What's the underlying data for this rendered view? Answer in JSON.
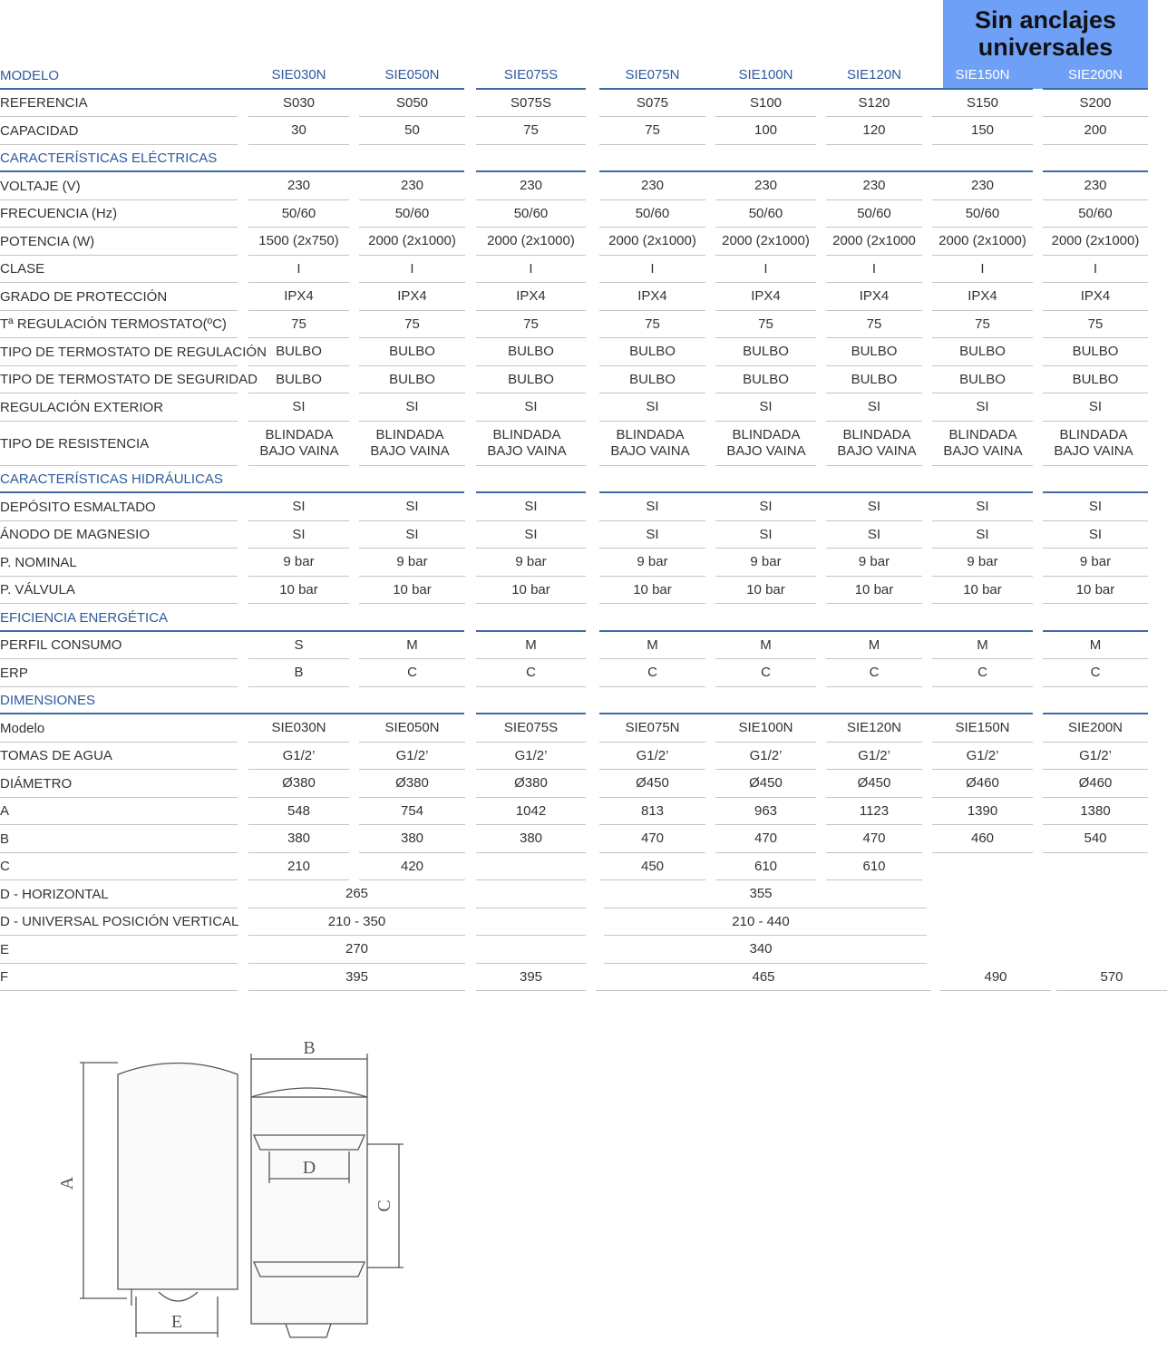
{
  "badge": "Sin anclajes universales",
  "table": {
    "header": {
      "label": "MODELO",
      "cells": [
        "SIE030N",
        "SIE050N",
        "SIE075S",
        "SIE075N",
        "SIE100N",
        "SIE120N",
        "SIE150N",
        "SIE200N"
      ]
    },
    "rows": [
      {
        "label": "REFERENCIA",
        "cells": [
          "S030",
          "S050",
          "S075S",
          "S075",
          "S100",
          "S120",
          "S150",
          "S200"
        ]
      },
      {
        "label": "CAPACIDAD",
        "cells": [
          "30",
          "50",
          "75",
          "75",
          "100",
          "120",
          "150",
          "200"
        ]
      },
      {
        "section": "CARACTERÍSTICAS ELÉCTRICAS"
      },
      {
        "label": "VOLTAJE (V)",
        "cells": [
          "230",
          "230",
          "230",
          "230",
          "230",
          "230",
          "230",
          "230"
        ]
      },
      {
        "label": "FRECUENCIA (Hz)",
        "cells": [
          "50/60",
          "50/60",
          "50/60",
          "50/60",
          "50/60",
          "50/60",
          "50/60",
          "50/60"
        ]
      },
      {
        "label": "POTENCIA (W)",
        "cells": [
          "1500 (2x750)",
          "2000 (2x1000)",
          "2000 (2x1000)",
          "2000 (2x1000)",
          "2000 (2x1000)",
          "2000 (2x1000",
          "2000 (2x1000)",
          "2000 (2x1000)"
        ]
      },
      {
        "label": "CLASE",
        "cells": [
          "I",
          "I",
          "I",
          "I",
          "I",
          "I",
          "I",
          "I"
        ]
      },
      {
        "label": "GRADO DE PROTECCIÓN",
        "cells": [
          "IPX4",
          "IPX4",
          "IPX4",
          "IPX4",
          "IPX4",
          "IPX4",
          "IPX4",
          "IPX4"
        ]
      },
      {
        "label": "Tª REGULACIÓN TERMOSTATO(ºC)",
        "cells": [
          "75",
          "75",
          "75",
          "75",
          "75",
          "75",
          "75",
          "75"
        ]
      },
      {
        "label": "TIPO DE TERMOSTATO DE REGULACIÓN",
        "cells": [
          "BULBO",
          "BULBO",
          "BULBO",
          "BULBO",
          "BULBO",
          "BULBO",
          "BULBO",
          "BULBO"
        ]
      },
      {
        "label": "TIPO DE TERMOSTATO DE SEGURIDAD",
        "cells": [
          "BULBO",
          "BULBO",
          "BULBO",
          "BULBO",
          "BULBO",
          "BULBO",
          "BULBO",
          "BULBO"
        ]
      },
      {
        "label": "REGULACIÓN EXTERIOR",
        "cells": [
          "SI",
          "SI",
          "SI",
          "SI",
          "SI",
          "SI",
          "SI",
          "SI"
        ]
      },
      {
        "label": "TIPO DE RESISTENCIA",
        "cells": [
          "BLINDADA BAJO VAINA",
          "BLINDADA BAJO VAINA",
          "BLINDADA BAJO VAINA",
          "BLINDADA BAJO VAINA",
          "BLINDADA BAJO VAINA",
          "BLINDADA BAJO VAINA",
          "BLINDADA BAJO VAINA",
          "BLINDADA BAJO VAINA"
        ]
      },
      {
        "section": "CARACTERÍSTICAS HIDRÁULICAS"
      },
      {
        "label": "DEPÓSITO ESMALTADO",
        "cells": [
          "SI",
          "SI",
          "SI",
          "SI",
          "SI",
          "SI",
          "SI",
          "SI"
        ]
      },
      {
        "label": "ÁNODO DE MAGNESIO",
        "cells": [
          "SI",
          "SI",
          "SI",
          "SI",
          "SI",
          "SI",
          "SI",
          "SI"
        ]
      },
      {
        "label": "P. NOMINAL",
        "cells": [
          "9 bar",
          "9 bar",
          "9 bar",
          "9 bar",
          "9 bar",
          "9 bar",
          "9 bar",
          "9 bar"
        ]
      },
      {
        "label": "P. VÁLVULA",
        "cells": [
          "10 bar",
          "10 bar",
          "10 bar",
          "10 bar",
          "10 bar",
          "10 bar",
          "10 bar",
          "10 bar"
        ]
      },
      {
        "section": "EFICIENCIA ENERGÉTICA"
      },
      {
        "label": "PERFIL CONSUMO",
        "cells": [
          "S",
          "M",
          "M",
          "M",
          "M",
          "M",
          "M",
          "M"
        ]
      },
      {
        "label": "ERP",
        "cells": [
          "B",
          "C",
          "C",
          "C",
          "C",
          "C",
          "C",
          "C"
        ]
      },
      {
        "section": "DIMENSIONES"
      },
      {
        "label": "Modelo",
        "cells": [
          "SIE030N",
          "SIE050N",
          "SIE075S",
          "SIE075N",
          "SIE100N",
          "SIE120N",
          "SIE150N",
          "SIE200N"
        ]
      },
      {
        "label": "TOMAS DE AGUA",
        "cells": [
          "G1/2’",
          "G1/2’",
          "G1/2’",
          "G1/2’",
          "G1/2’",
          "G1/2’",
          "G1/2’",
          "G1/2’"
        ]
      },
      {
        "label": "DIÁMETRO",
        "cells": [
          "Ø380",
          "Ø380",
          "Ø380",
          "Ø450",
          "Ø450",
          "Ø450",
          "Ø460",
          "Ø460"
        ]
      },
      {
        "label": "A",
        "cells": [
          "548",
          "754",
          "1042",
          "813",
          "963",
          "1123",
          "1390",
          "1380"
        ]
      },
      {
        "label": "B",
        "cells": [
          "380",
          "380",
          "380",
          "470",
          "470",
          "470",
          "460",
          "540"
        ]
      },
      {
        "label": "C",
        "cells": [
          "210",
          "420",
          "450",
          "610",
          "610"
        ]
      },
      {
        "label": "D - HORIZONTAL",
        "cells": [
          "265",
          "355"
        ]
      },
      {
        "label": "D - UNIVERSAL POSICIÓN VERTICAL",
        "cells": [
          "210 - 350",
          "210 - 440"
        ]
      },
      {
        "label": "E",
        "cells": [
          "270",
          "340"
        ]
      },
      {
        "label": "F",
        "cells": [
          "395",
          "395",
          "465",
          "490",
          "570"
        ]
      }
    ]
  },
  "diagram": {
    "labels": [
      "A",
      "B",
      "C",
      "D",
      "E"
    ]
  }
}
